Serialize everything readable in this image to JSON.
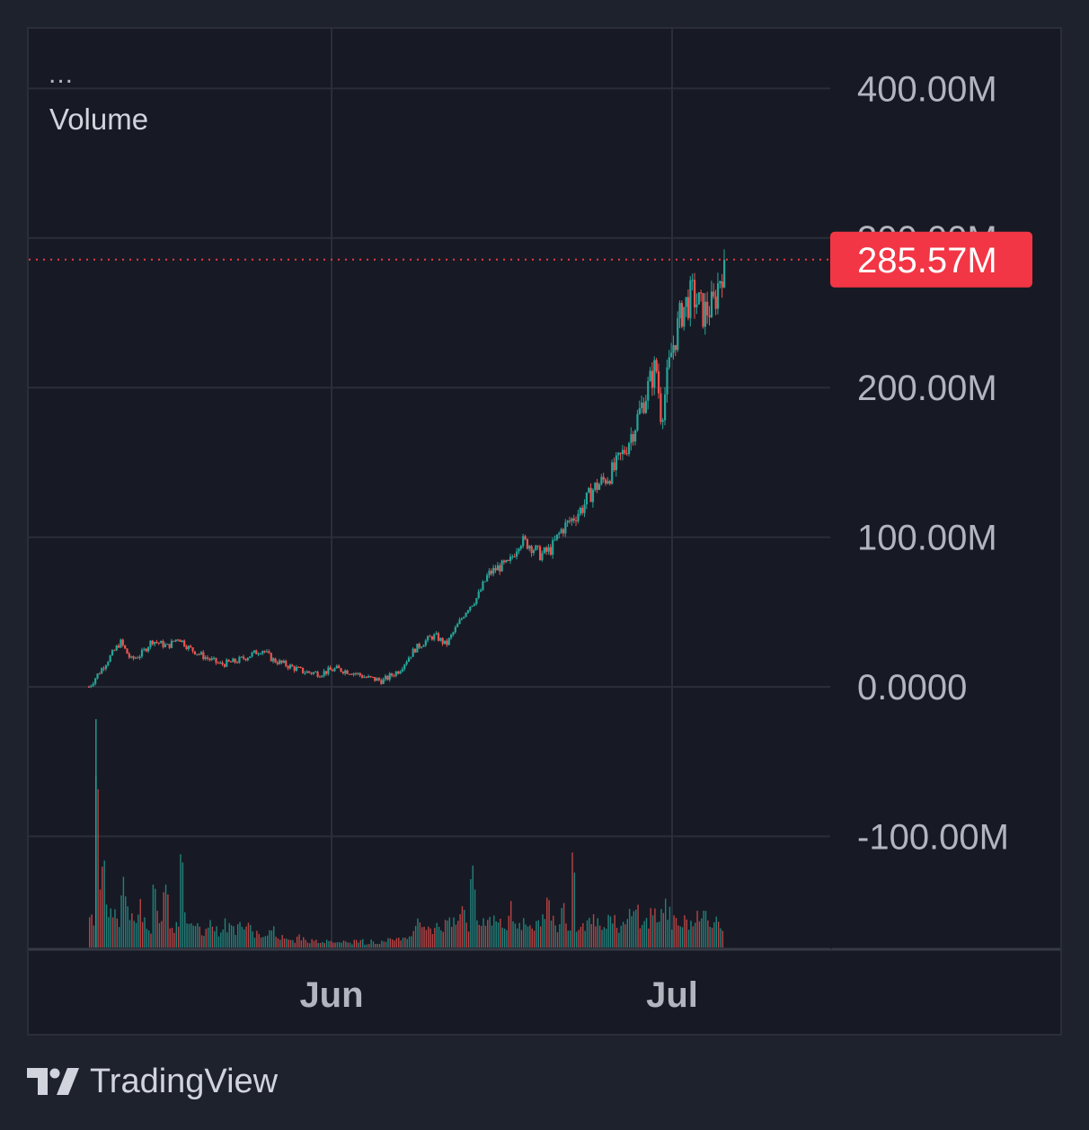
{
  "legend": {
    "ellipsis": "...",
    "volume_label": "Volume"
  },
  "brand": {
    "name": "TradingView",
    "logo_icon": "tradingview-logo-icon"
  },
  "colors": {
    "background": "#1e222d",
    "pane": "#171a24",
    "grid": "#2a2e39",
    "up": "#26a69a",
    "down": "#ef5350",
    "price_label_bg": "#f23645",
    "axis_text": "#b2b5be"
  },
  "chart_data": {
    "type": "candlestick",
    "title": "",
    "y_axis": {
      "ticks": [
        "400.00M",
        "300.00M",
        "200.00M",
        "100.00M",
        "0.0000",
        "-100.00M"
      ],
      "tick_values": [
        400,
        300,
        200,
        100,
        0,
        -100
      ],
      "unit": "M",
      "range": [
        -175,
        440
      ]
    },
    "x_axis": {
      "ticks": [
        "Jun",
        "Jul"
      ],
      "range": [
        "May 4",
        "Jul 21"
      ]
    },
    "last_price": {
      "label": "285.57M",
      "value": 285.57
    },
    "grid": true,
    "volume_pane": true,
    "price_series": {
      "name": "Volume",
      "points": [
        [
          0,
          0
        ],
        [
          3,
          15
        ],
        [
          6,
          30
        ],
        [
          8,
          18
        ],
        [
          10,
          22
        ],
        [
          12,
          31
        ],
        [
          15,
          27
        ],
        [
          17,
          33
        ],
        [
          19,
          26
        ],
        [
          22,
          20
        ],
        [
          25,
          15
        ],
        [
          28,
          17
        ],
        [
          30,
          20
        ],
        [
          33,
          25
        ],
        [
          35,
          18
        ],
        [
          38,
          14
        ],
        [
          41,
          10
        ],
        [
          44,
          9
        ],
        [
          47,
          12
        ],
        [
          50,
          10
        ],
        [
          53,
          6
        ],
        [
          56,
          4
        ],
        [
          59,
          11
        ],
        [
          62,
          25
        ],
        [
          65,
          33
        ],
        [
          66,
          34
        ],
        [
          68,
          28
        ],
        [
          70,
          40
        ],
        [
          72,
          52
        ],
        [
          74,
          60
        ],
        [
          76,
          75
        ],
        [
          78,
          80
        ],
        [
          80,
          82
        ],
        [
          82,
          98
        ],
        [
          84,
          95
        ],
        [
          86,
          88
        ],
        [
          88,
          92
        ],
        [
          90,
          105
        ],
        [
          92,
          112
        ],
        [
          94,
          120
        ],
        [
          96,
          132
        ],
        [
          98,
          138
        ],
        [
          100,
          145
        ],
        [
          102,
          158
        ],
        [
          104,
          175
        ],
        [
          106,
          195
        ],
        [
          108,
          215
        ],
        [
          109,
          180
        ],
        [
          111,
          225
        ],
        [
          113,
          252
        ],
        [
          115,
          262
        ],
        [
          117,
          250
        ],
        [
          119,
          255
        ],
        [
          120,
          272
        ],
        [
          121,
          285.57
        ]
      ]
    },
    "volume_series": {
      "name": "Volume",
      "relative_heights": [
        0.15,
        1.0,
        0.35,
        0.2,
        0.15,
        0.12,
        0.3,
        0.18,
        0.14,
        0.2,
        0.12,
        0.1,
        0.25,
        0.15,
        0.3,
        0.12,
        0.1,
        0.35,
        0.14,
        0.12,
        0.1,
        0.08,
        0.12,
        0.1,
        0.08,
        0.11,
        0.1,
        0.09,
        0.12,
        0.08,
        0.1,
        0.07,
        0.06,
        0.05,
        0.08,
        0.04,
        0.05,
        0.04,
        0.03,
        0.05,
        0.04,
        0.03,
        0.04,
        0.02,
        0.03,
        0.04,
        0.03,
        0.02,
        0.03,
        0.02,
        0.03,
        0.05,
        0.02,
        0.03,
        0.02,
        0.03,
        0.04,
        0.03,
        0.05,
        0.04,
        0.06,
        0.12,
        0.14,
        0.1,
        0.08,
        0.12,
        0.1,
        0.14,
        0.11,
        0.12,
        0.18,
        0.1,
        0.35,
        0.12,
        0.14,
        0.16,
        0.12,
        0.14,
        0.1,
        0.18,
        0.12,
        0.1,
        0.14,
        0.12,
        0.1,
        0.15,
        0.2,
        0.12,
        0.1,
        0.18,
        0.12,
        0.45,
        0.1,
        0.12,
        0.16,
        0.14,
        0.12,
        0.1,
        0.15,
        0.12,
        0.1,
        0.12,
        0.15,
        0.18,
        0.14,
        0.12,
        0.16,
        0.14,
        0.2,
        0.15,
        0.12,
        0.1,
        0.14,
        0.12,
        0.15,
        0.12,
        0.18,
        0.14,
        0.12,
        0.1
      ]
    }
  }
}
